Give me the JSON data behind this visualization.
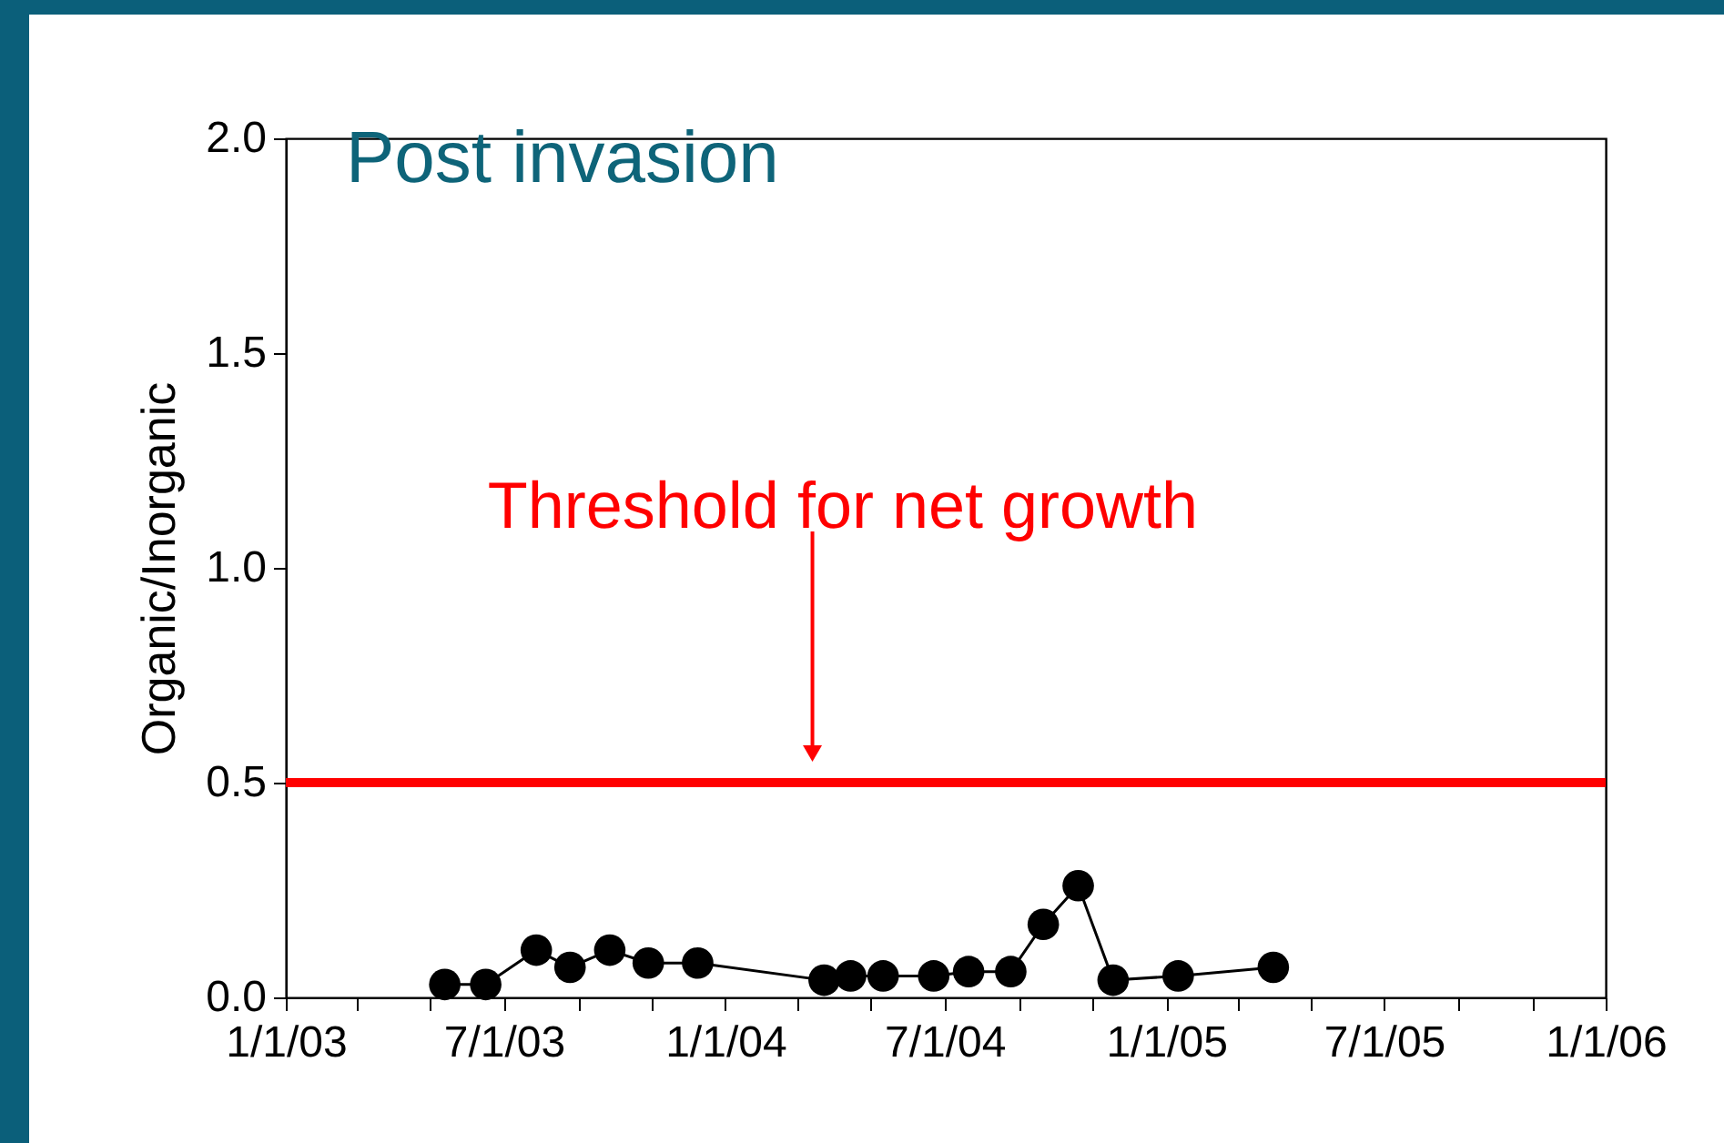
{
  "chart_data": {
    "type": "line",
    "title": "Post invasion",
    "ylabel": "Organic/Inorganic",
    "x": [
      "2003-05-13",
      "2003-06-16",
      "2003-07-28",
      "2003-08-25",
      "2003-09-27",
      "2003-10-29",
      "2003-12-09",
      "2004-03-23",
      "2004-04-14",
      "2004-05-11",
      "2004-06-22",
      "2004-07-21",
      "2004-08-25",
      "2004-09-21",
      "2004-10-20",
      "2004-11-18",
      "2005-01-11",
      "2005-03-31"
    ],
    "series": [
      {
        "color": "#000000",
        "values": [
          0.03,
          0.03,
          0.11,
          0.07,
          0.11,
          0.08,
          0.08,
          0.04,
          0.05,
          0.05,
          0.05,
          0.06,
          0.06,
          0.17,
          0.26,
          0.04,
          0.05,
          0.07
        ]
      }
    ],
    "xlim": [
      "2003-01-01",
      "2006-01-01"
    ],
    "xticks": [
      {
        "value": "2003-01-01",
        "label": "1/1/03"
      },
      {
        "value": "2003-03-01",
        "label": null
      },
      {
        "value": "2003-05-01",
        "label": null
      },
      {
        "value": "2003-07-01",
        "label": "7/1/03"
      },
      {
        "value": "2003-09-01",
        "label": null
      },
      {
        "value": "2003-11-01",
        "label": null
      },
      {
        "value": "2004-01-01",
        "label": "1/1/04"
      },
      {
        "value": "2004-03-01",
        "label": null
      },
      {
        "value": "2004-05-01",
        "label": null
      },
      {
        "value": "2004-07-01",
        "label": "7/1/04"
      },
      {
        "value": "2004-09-01",
        "label": null
      },
      {
        "value": "2004-11-01",
        "label": null
      },
      {
        "value": "2005-01-01",
        "label": "1/1/05"
      },
      {
        "value": "2005-03-01",
        "label": null
      },
      {
        "value": "2005-05-01",
        "label": null
      },
      {
        "value": "2005-07-01",
        "label": "7/1/05"
      },
      {
        "value": "2005-09-01",
        "label": null
      },
      {
        "value": "2005-11-01",
        "label": null
      },
      {
        "value": "2006-01-01",
        "label": "1/1/06"
      }
    ],
    "ylim": [
      0,
      2
    ],
    "yticks": [
      {
        "value": 0,
        "label": "0.0"
      },
      {
        "value": 0.5,
        "label": "0.5"
      },
      {
        "value": 1,
        "label": "1.0"
      },
      {
        "value": 1.5,
        "label": "1.5"
      },
      {
        "value": 2,
        "label": "2.0"
      }
    ],
    "ref_lines": [
      {
        "axis": "y",
        "value": 0.5,
        "label": "Threshold for net growth",
        "color": "#ff0000"
      }
    ],
    "grid": false,
    "marker": "circle",
    "line_style": "solid"
  }
}
